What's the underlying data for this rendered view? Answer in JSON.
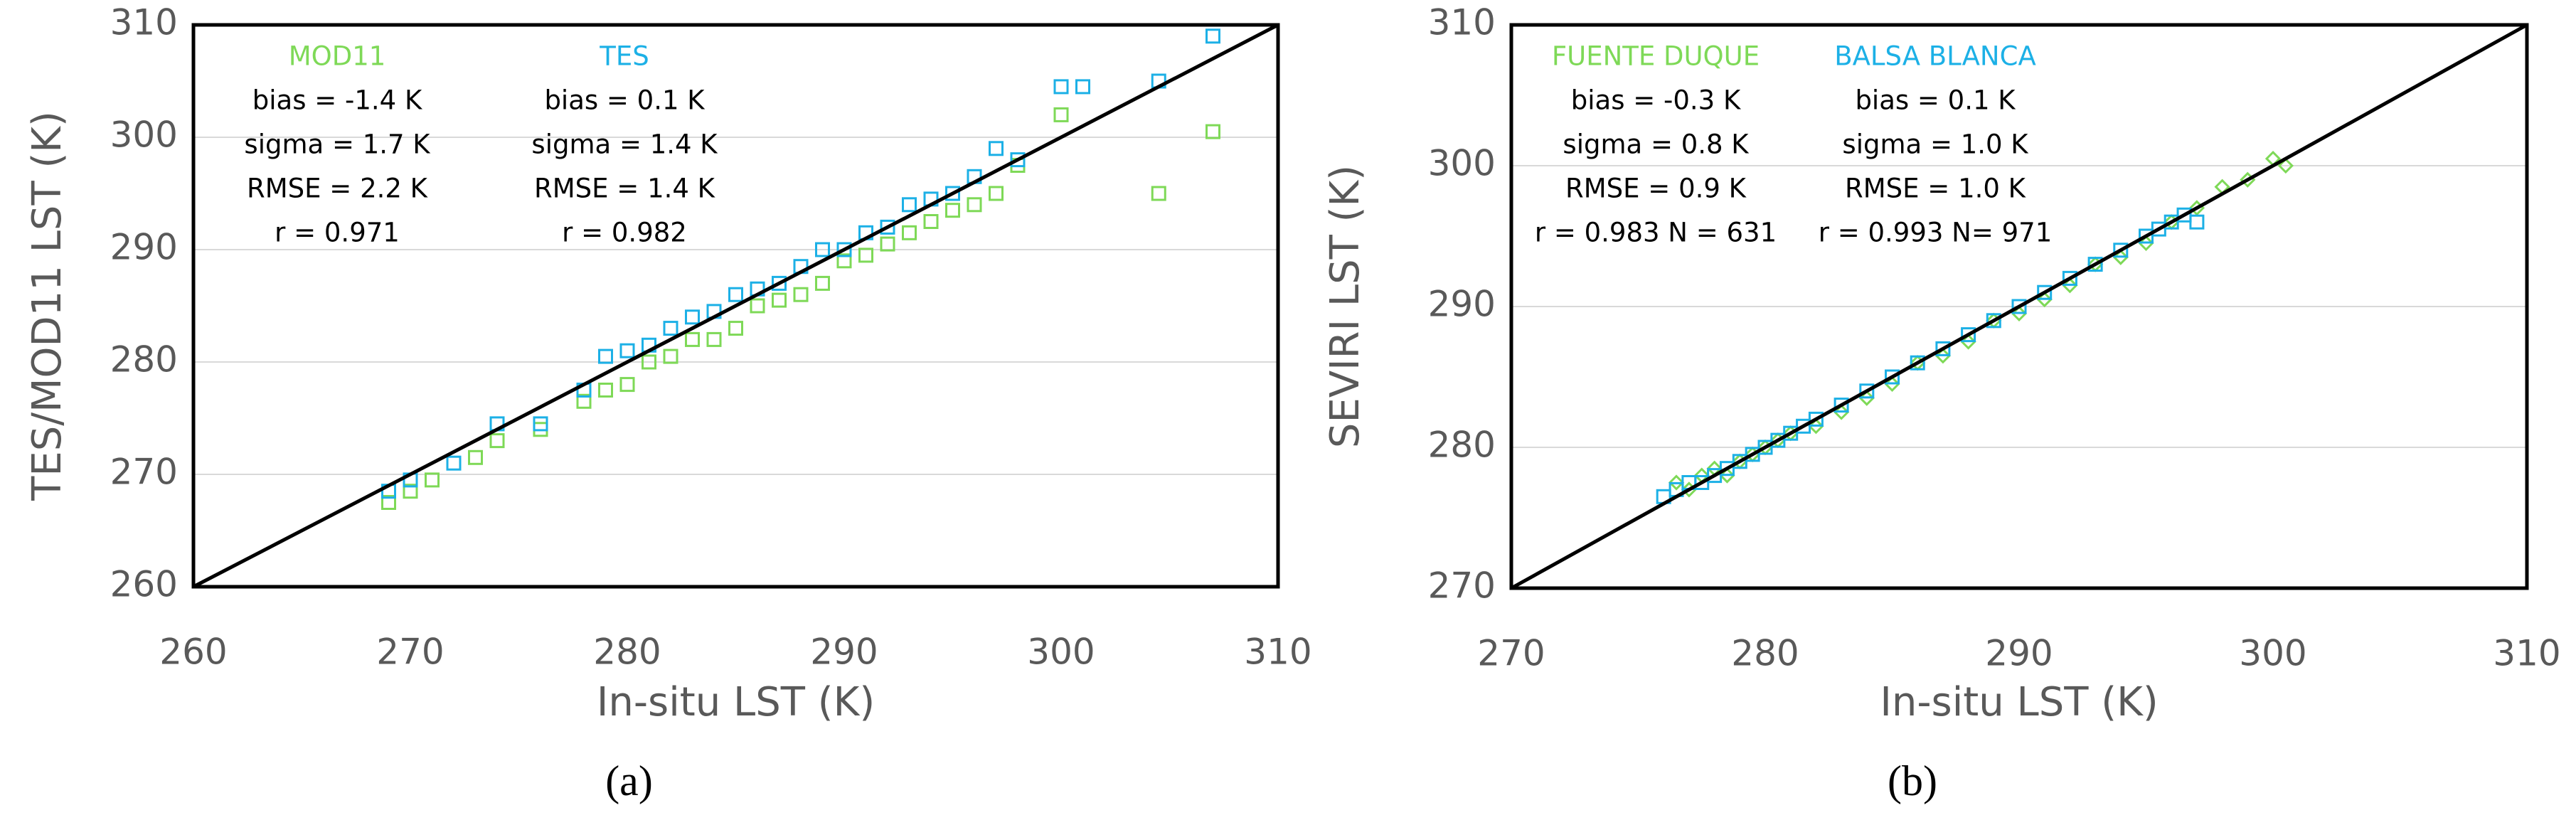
{
  "chart_data": [
    {
      "type": "scatter",
      "panel_label": "(a)",
      "x_label": "In-situ LST (K)",
      "y_label": "TES/MOD11 LST (K)",
      "xlim": [
        260,
        310
      ],
      "xticks": [
        260,
        270,
        280,
        290,
        300,
        310
      ],
      "ylim": [
        260,
        310
      ],
      "yticks": [
        260,
        270,
        280,
        290,
        300,
        310
      ],
      "grid": true,
      "series": [
        {
          "name": "MOD11",
          "color": "#7ed957",
          "marker": "square",
          "stats": [
            "bias = -1.4 K",
            "sigma = 1.7 K",
            "RMSE = 2.2 K",
            "r = 0.971"
          ],
          "x": [
            269,
            270,
            271,
            273,
            274,
            276,
            278,
            279,
            280,
            281,
            282,
            283,
            284,
            285,
            286,
            287,
            288,
            289,
            290,
            291,
            292,
            293,
            294,
            295,
            296,
            297,
            298,
            300,
            304.5,
            307
          ],
          "values": [
            267.5,
            268.5,
            269.5,
            271.5,
            273,
            274,
            276.5,
            277.5,
            278,
            280,
            280.5,
            282,
            282,
            283,
            285,
            285.5,
            286,
            287,
            289,
            289.5,
            290.5,
            291.5,
            292.5,
            293.5,
            294,
            295,
            297.5,
            302,
            295,
            300.5
          ]
        },
        {
          "name": "TES",
          "color": "#1cb0e6",
          "marker": "square",
          "stats": [
            "bias = 0.1 K",
            "sigma = 1.4 K",
            "RMSE = 1.4 K",
            "r = 0.982"
          ],
          "x": [
            269,
            270,
            272,
            274,
            276,
            278,
            279,
            280,
            281,
            282,
            283,
            284,
            285,
            286,
            287,
            288,
            289,
            290,
            291,
            292,
            293,
            294,
            295,
            296,
            297,
            298,
            300,
            301,
            304.5,
            307
          ],
          "values": [
            268.5,
            269.5,
            271,
            274.5,
            274.5,
            277.5,
            280.5,
            281,
            281.5,
            283,
            284,
            284.5,
            286,
            286.5,
            287,
            288.5,
            290,
            290,
            291.5,
            292,
            294,
            294.5,
            295,
            296.5,
            299,
            298,
            304.5,
            304.5,
            305,
            309
          ]
        }
      ]
    },
    {
      "type": "scatter",
      "panel_label": "(b)",
      "x_label": "In-situ LST (K)",
      "y_label": "SEVIRI LST (K)",
      "xlim": [
        270,
        310
      ],
      "xticks": [
        270,
        280,
        290,
        300,
        310
      ],
      "ylim": [
        270,
        310
      ],
      "yticks": [
        270,
        280,
        290,
        300,
        310
      ],
      "grid": true,
      "series": [
        {
          "name": "FUENTE DUQUE",
          "color": "#7ed957",
          "marker": "diamond",
          "stats": [
            "bias = -0.3 K",
            "sigma = 0.8 K",
            "RMSE = 0.9 K",
            "r = 0.983  N = 631"
          ],
          "x": [
            276.5,
            277,
            277.5,
            278,
            278.5,
            279,
            279.5,
            280,
            280.5,
            281,
            282,
            283,
            284,
            285,
            286,
            287,
            288,
            289,
            290,
            291,
            292,
            293,
            294,
            295,
            296,
            297,
            298,
            299,
            300,
            300.5
          ],
          "values": [
            277.5,
            277,
            278,
            278.5,
            278,
            279,
            279.5,
            280,
            280.5,
            281,
            281.5,
            282.5,
            283.5,
            284.5,
            286,
            286.5,
            287.5,
            289,
            289.5,
            290.5,
            291.5,
            293,
            293.5,
            294.5,
            296,
            297,
            298.5,
            299,
            300.5,
            300
          ]
        },
        {
          "name": "BALSA BLANCA",
          "color": "#1cb0e6",
          "marker": "square",
          "stats": [
            "bias = 0.1 K",
            "sigma = 1.0 K",
            "RMSE = 1.0 K",
            "r = 0.993  N= 971"
          ],
          "x": [
            276,
            276.5,
            277,
            277.5,
            278,
            278.5,
            279,
            279.5,
            280,
            280.5,
            281,
            281.5,
            282,
            283,
            284,
            285,
            286,
            287,
            288,
            289,
            290,
            291,
            292,
            293,
            294,
            295,
            295.5,
            296,
            296.5,
            297
          ],
          "values": [
            276.5,
            277,
            277.5,
            277.5,
            278,
            278.5,
            279,
            279.5,
            280,
            280.5,
            281,
            281.5,
            282,
            283,
            284,
            285,
            286,
            287,
            288,
            289,
            290,
            291,
            292,
            293,
            294,
            295,
            295.5,
            296,
            296.5,
            296
          ]
        }
      ]
    }
  ]
}
